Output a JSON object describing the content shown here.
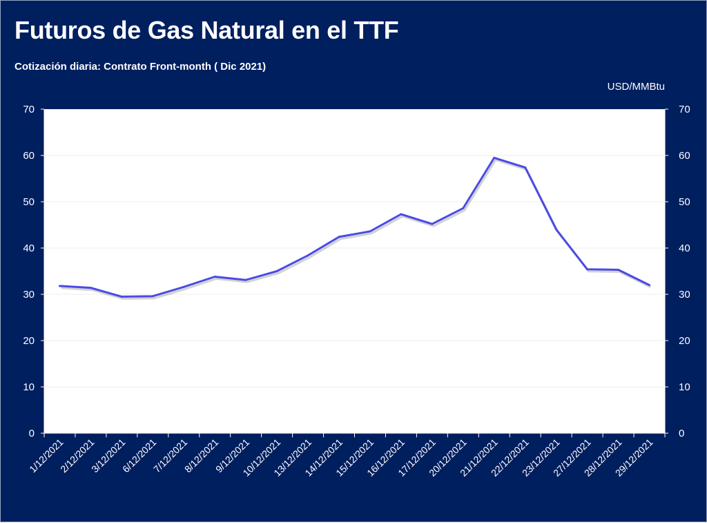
{
  "title": "Futuros de Gas Natural en el TTF",
  "subtitle": "Cotización diaria: Contrato Front-month ( Dic 2021)",
  "unit_label": "USD/MMBtu",
  "colors": {
    "background": "#001f5f",
    "plot_area": "#ffffff",
    "line": "#4a4ae6",
    "text": "#ffffff"
  },
  "chart_data": {
    "type": "line",
    "title": "Futuros de Gas Natural en el TTF",
    "subtitle": "Cotización diaria: Contrato Front-month ( Dic 2021)",
    "ylabel": "USD/MMBtu",
    "xlabel": "",
    "ylim": [
      0,
      70
    ],
    "yticks": [
      0,
      10,
      20,
      30,
      40,
      50,
      60,
      70
    ],
    "secondary_axis": true,
    "grid": true,
    "legend": "none",
    "categories": [
      "1/12/2021",
      "2/12/2021",
      "3/12/2021",
      "6/12/2021",
      "7/12/2021",
      "8/12/2021",
      "9/12/2021",
      "10/12/2021",
      "13/12/2021",
      "14/12/2021",
      "15/12/2021",
      "16/12/2021",
      "17/12/2021",
      "20/12/2021",
      "21/12/2021",
      "22/12/2021",
      "23/12/2021",
      "27/12/2021",
      "28/12/2021",
      "29/12/2021"
    ],
    "series": [
      {
        "values": [
          31.8,
          31.4,
          29.5,
          29.6,
          31.6,
          33.8,
          33.1,
          35.0,
          38.4,
          42.4,
          43.6,
          47.3,
          45.2,
          48.6,
          59.5,
          57.4,
          44.0,
          35.4,
          35.3,
          32.0
        ]
      }
    ]
  }
}
